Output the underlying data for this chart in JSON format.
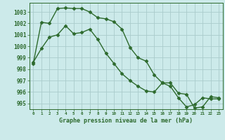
{
  "title": "Graphe pression niveau de la mer (hPa)",
  "background_color": "#cceaea",
  "grid_color": "#aacccc",
  "line_color": "#2d6a2d",
  "marker": "D",
  "markersize": 2.5,
  "linewidth": 1.0,
  "ylim": [
    994.5,
    1003.8
  ],
  "yticks": [
    995,
    996,
    997,
    998,
    999,
    1000,
    1001,
    1002,
    1003
  ],
  "xlim": [
    -0.5,
    23.5
  ],
  "xticks": [
    0,
    1,
    2,
    3,
    4,
    5,
    6,
    7,
    8,
    9,
    10,
    11,
    12,
    13,
    14,
    15,
    16,
    17,
    18,
    19,
    20,
    21,
    22,
    23
  ],
  "series1": [
    998.5,
    1002.1,
    1002.0,
    1003.3,
    1003.35,
    1003.3,
    1003.3,
    1003.0,
    1002.5,
    1002.4,
    1002.15,
    1001.5,
    999.9,
    999.0,
    998.7,
    997.5,
    996.8,
    996.5,
    995.5,
    994.7,
    994.9,
    995.5,
    995.4,
    995.4
  ],
  "series2": [
    998.6,
    999.8,
    1000.8,
    1001.0,
    1001.8,
    1001.1,
    1001.2,
    1001.5,
    1000.6,
    999.4,
    998.5,
    997.6,
    997.0,
    996.5,
    996.1,
    996.0,
    996.8,
    996.8,
    995.9,
    995.8,
    994.6,
    994.7,
    995.6,
    995.5
  ]
}
